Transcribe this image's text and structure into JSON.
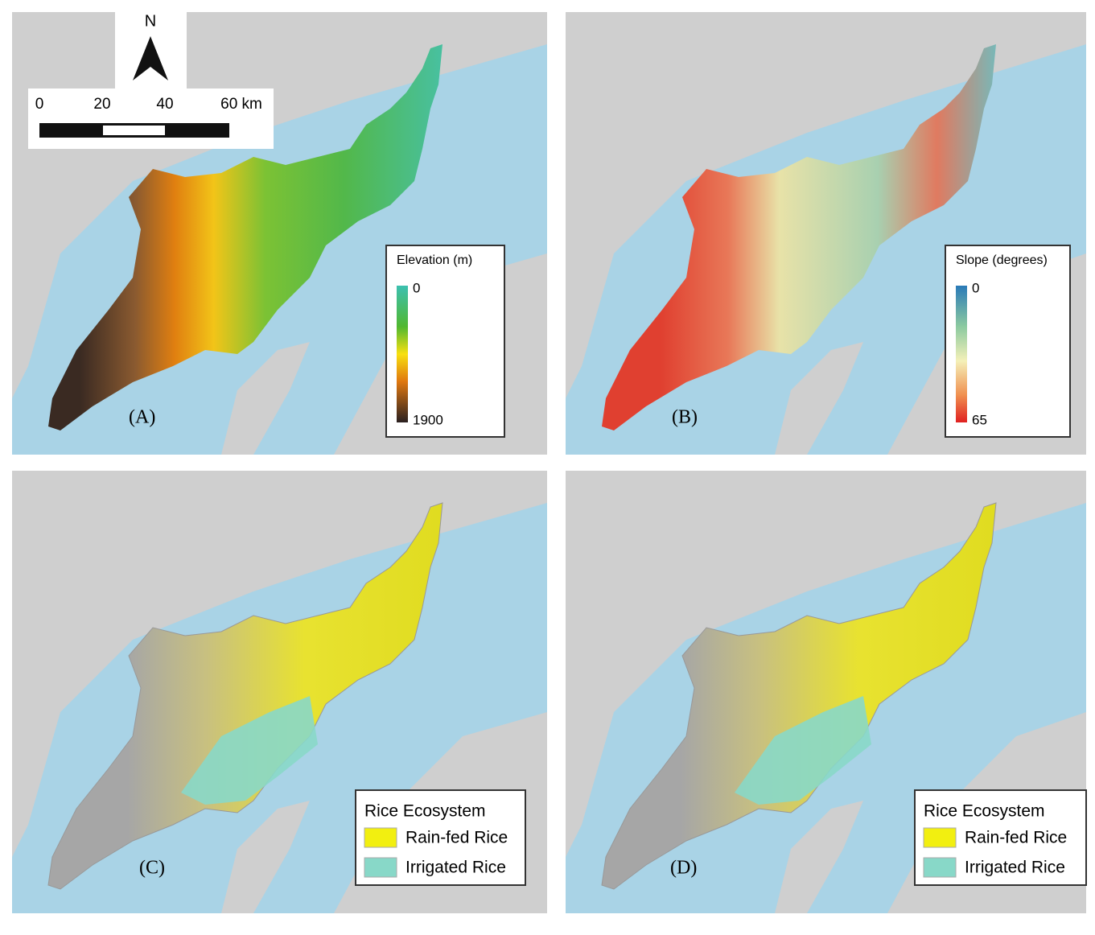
{
  "north": "N",
  "scale_bar": [
    "0",
    "20",
    "40",
    "60 km"
  ],
  "panels": [
    {
      "label": "(A)",
      "legend": {
        "title": "Elevation (m)",
        "min": "0",
        "max": "1900"
      }
    },
    {
      "label": "(B)",
      "legend": {
        "title": "Slope (degrees)",
        "min": "0",
        "max": "65"
      }
    },
    {
      "label": "(C)",
      "legend": {
        "title": "Rice Ecosystem",
        "items": [
          "Rain-fed Rice",
          "Irrigated Rice"
        ]
      }
    },
    {
      "label": "(D)",
      "legend": {
        "title": "Rice Ecosystem",
        "items": [
          "Rain-fed Rice",
          "Irrigated Rice"
        ]
      }
    }
  ]
}
